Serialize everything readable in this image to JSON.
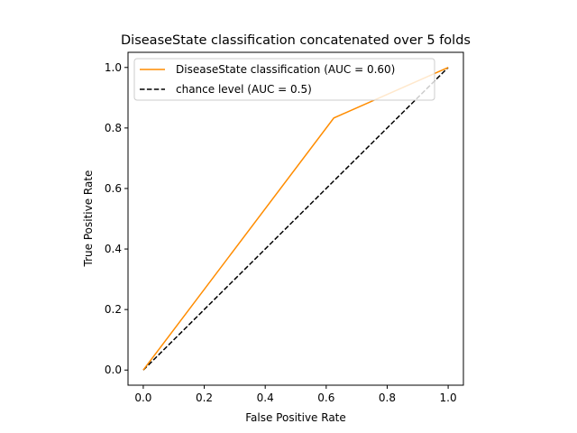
{
  "chart_data": {
    "type": "line",
    "title": "DiseaseState classification concatenated over 5 folds",
    "xlabel": "False Positive Rate",
    "ylabel": "True Positive Rate",
    "xlim": [
      -0.05,
      1.05
    ],
    "ylim": [
      -0.05,
      1.05
    ],
    "xticks": [
      "0.0",
      "0.2",
      "0.4",
      "0.6",
      "0.8",
      "1.0"
    ],
    "yticks": [
      "0.0",
      "0.2",
      "0.4",
      "0.6",
      "0.8",
      "1.0"
    ],
    "grid": false,
    "legend_position": "top-left",
    "series": [
      {
        "name": "DiseaseState classification (AUC = 0.60)",
        "color": "#ff8c00",
        "style": "solid",
        "x": [
          0.0,
          0.625,
          1.0
        ],
        "y": [
          0.0,
          0.833,
          1.0
        ]
      },
      {
        "name": "chance level (AUC = 0.5)",
        "color": "#000000",
        "style": "dashed",
        "x": [
          0.0,
          1.0
        ],
        "y": [
          0.0,
          1.0
        ]
      }
    ]
  }
}
